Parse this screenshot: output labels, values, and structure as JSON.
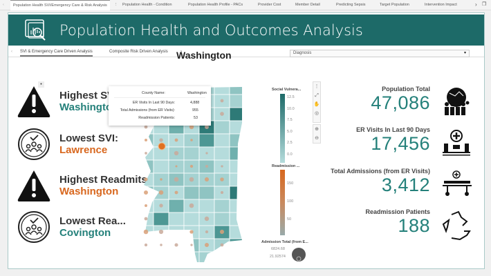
{
  "report_tabs": [
    {
      "label": "Population Health SVI/Emergency Care & Risk Analysis",
      "active": true
    },
    {
      "label": "Population Health - Condition"
    },
    {
      "label": "Population Health Profile - PACs"
    },
    {
      "label": "Provider Cost"
    },
    {
      "label": "Member Detail"
    },
    {
      "label": "Predicting Sepsis"
    },
    {
      "label": "Target Population"
    },
    {
      "label": "Intervention Impact"
    }
  ],
  "header": {
    "title": "Population Health and Outcomes Analysis"
  },
  "page_tabs": [
    {
      "label": "SVI & Emergency Care Driven Analysis",
      "active": true
    },
    {
      "label": "Composite Risk Driven Analysis"
    }
  ],
  "colors": {
    "teal": "#1d6a68",
    "teal_text": "#24807a",
    "orange": "#d8671e"
  },
  "stats": [
    {
      "label": "Highest SVI:",
      "value": "Washington",
      "color": "#24807a",
      "icon": "warning-icon"
    },
    {
      "label": "Lowest SVI:",
      "value": "Lawrence",
      "color": "#d8671e",
      "icon": "community-icon"
    },
    {
      "label": "Highest Readmits:",
      "value": "Washington",
      "color": "#d8671e",
      "icon": "warning-icon"
    },
    {
      "label": "Lowest Rea...",
      "value": "Covington",
      "color": "#24807a",
      "icon": "community-icon"
    }
  ],
  "map": {
    "title": "Washington",
    "tooltip": {
      "header_label": "County Name:",
      "header_value": "Washington",
      "rows": [
        {
          "label": "ER Visits In Last 90 Days:",
          "value": "4,888"
        },
        {
          "label": "Total Admissions (from ER Visits):",
          "value": "955"
        },
        {
          "label": "Readmission Patients:",
          "value": "53"
        }
      ]
    }
  },
  "dropdown": {
    "value": "Diagnosis"
  },
  "legend": {
    "svi": {
      "title": "Social Vulnera...",
      "ticks": [
        "12.5",
        "10.0",
        "7.5",
        "5.0",
        "2.5",
        "0.0"
      ]
    },
    "readmission": {
      "title": "Readmission ...",
      "ticks": [
        "150",
        "100",
        "50"
      ]
    },
    "admission": {
      "title": "Admission Total (from E...",
      "max": "6824.68",
      "min": "21.92574"
    }
  },
  "kpis": [
    {
      "label": "Population Total",
      "value": "47,086",
      "icon": "crowd-icon"
    },
    {
      "label": "ER Visits In Last 90 Days",
      "value": "17,456",
      "icon": "emergency-room-icon"
    },
    {
      "label": "Total Admissions (from ER Visits)",
      "value": "3,412",
      "icon": "hospital-bed-icon"
    },
    {
      "label": "Readmission Patients",
      "value": "188",
      "icon": "recycle-arrows-icon"
    }
  ]
}
